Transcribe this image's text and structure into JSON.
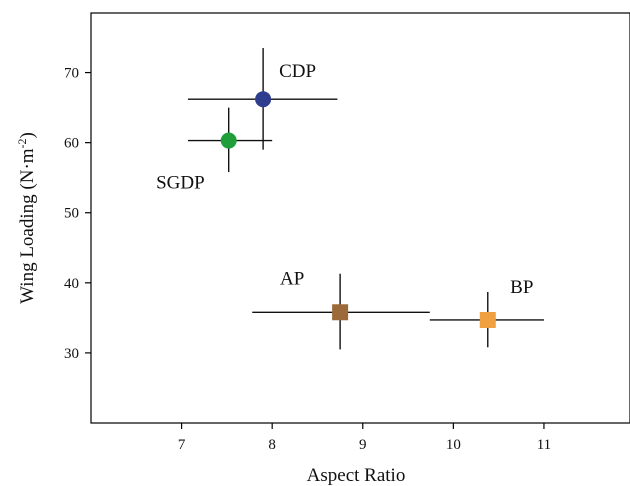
{
  "chart_data": {
    "type": "scatter",
    "title": "",
    "xlabel": "Aspect Ratio",
    "ylabel": "Wing Loading (N·m",
    "ylabel_sup": "-2",
    "ylabel_close": ")",
    "xlim": [
      6.0,
      11.95
    ],
    "ylim": [
      20.0,
      78.5
    ],
    "xticks": [
      7,
      8,
      9,
      10,
      11
    ],
    "yticks": [
      30,
      40,
      50,
      60,
      70
    ],
    "grid": false,
    "legend": "none",
    "points": [
      {
        "label": "CDP",
        "x": 7.9,
        "y": 66.2,
        "x_err": [
          7.07,
          8.72
        ],
        "y_err": [
          59.0,
          73.5
        ],
        "marker": "circle",
        "color": "#2f3d8f"
      },
      {
        "label": "SGDP",
        "x": 7.52,
        "y": 60.3,
        "x_err": [
          7.07,
          8.0
        ],
        "y_err": [
          55.8,
          65.0
        ],
        "marker": "circle",
        "color": "#1f9e3a"
      },
      {
        "label": "AP",
        "x": 8.75,
        "y": 35.8,
        "x_err": [
          7.78,
          9.74
        ],
        "y_err": [
          30.5,
          41.3
        ],
        "marker": "square",
        "color": "#9c6a3a"
      },
      {
        "label": "BP",
        "x": 10.38,
        "y": 34.7,
        "x_err": [
          9.74,
          11.0
        ],
        "y_err": [
          30.8,
          38.7
        ],
        "marker": "square",
        "color": "#f0a040"
      }
    ]
  }
}
